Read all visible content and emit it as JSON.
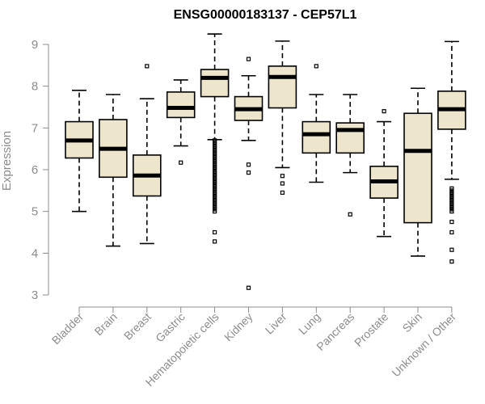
{
  "chart_data": {
    "type": "boxplot",
    "title": "ENSG00000183137 - CEP57L1",
    "xlabel": "",
    "ylabel": "Expression",
    "ylim": [
      3,
      9.2
    ],
    "yticks": [
      3,
      4,
      5,
      6,
      7,
      8,
      9
    ],
    "categories": [
      "Bladder",
      "Brain",
      "Breast",
      "Gastric",
      "Hematopoietic cells",
      "Kidney",
      "Liver",
      "Lung",
      "Pancreas",
      "Prostate",
      "Skin",
      "Unknown / Other"
    ],
    "boxes": [
      {
        "name": "Bladder",
        "min": 5.0,
        "q1": 6.28,
        "median": 6.7,
        "q3": 7.15,
        "max": 7.9,
        "outliers": []
      },
      {
        "name": "Brain",
        "min": 4.17,
        "q1": 5.82,
        "median": 6.5,
        "q3": 7.2,
        "max": 7.8,
        "outliers": []
      },
      {
        "name": "Breast",
        "min": 4.23,
        "q1": 5.37,
        "median": 5.86,
        "q3": 6.35,
        "max": 7.7,
        "outliers": [
          8.48
        ]
      },
      {
        "name": "Gastric",
        "min": 6.57,
        "q1": 7.25,
        "median": 7.48,
        "q3": 7.86,
        "max": 8.15,
        "outliers": [
          6.17
        ]
      },
      {
        "name": "Hematopoietic cells",
        "min": 6.72,
        "q1": 7.75,
        "median": 8.2,
        "q3": 8.4,
        "max": 9.25,
        "outliers": [
          6.7,
          6.65,
          6.6,
          6.55,
          6.5,
          6.45,
          6.4,
          6.35,
          6.3,
          6.25,
          6.2,
          6.15,
          6.1,
          6.05,
          6.0,
          5.95,
          5.9,
          5.85,
          5.8,
          5.75,
          5.7,
          5.65,
          5.6,
          5.55,
          5.5,
          5.45,
          5.4,
          5.35,
          5.3,
          5.25,
          5.2,
          5.15,
          5.1,
          5.05,
          5.0,
          4.5,
          4.28
        ]
      },
      {
        "name": "Kidney",
        "min": 6.7,
        "q1": 7.18,
        "median": 7.45,
        "q3": 7.75,
        "max": 8.25,
        "outliers": [
          8.65,
          6.12,
          5.93,
          3.17
        ]
      },
      {
        "name": "Liver",
        "min": 6.05,
        "q1": 7.48,
        "median": 8.22,
        "q3": 8.48,
        "max": 9.08,
        "outliers": [
          5.85,
          5.67,
          5.45
        ]
      },
      {
        "name": "Lung",
        "min": 5.7,
        "q1": 6.4,
        "median": 6.85,
        "q3": 7.15,
        "max": 7.8,
        "outliers": [
          8.48
        ]
      },
      {
        "name": "Pancreas",
        "min": 5.93,
        "q1": 6.4,
        "median": 6.95,
        "q3": 7.12,
        "max": 7.8,
        "outliers": [
          4.93
        ]
      },
      {
        "name": "Prostate",
        "min": 4.4,
        "q1": 5.32,
        "median": 5.72,
        "q3": 6.08,
        "max": 7.15,
        "outliers": [
          7.4
        ]
      },
      {
        "name": "Skin",
        "min": 3.93,
        "q1": 4.73,
        "median": 6.45,
        "q3": 7.35,
        "max": 7.95,
        "outliers": []
      },
      {
        "name": "Unknown / Other",
        "min": 5.77,
        "q1": 6.97,
        "median": 7.45,
        "q3": 7.88,
        "max": 9.07,
        "outliers": [
          5.55,
          5.5,
          5.45,
          5.4,
          5.35,
          5.3,
          5.25,
          5.2,
          5.15,
          5.1,
          5.05,
          5.0,
          4.75,
          4.5,
          4.08,
          3.8
        ]
      }
    ],
    "grid": false
  }
}
